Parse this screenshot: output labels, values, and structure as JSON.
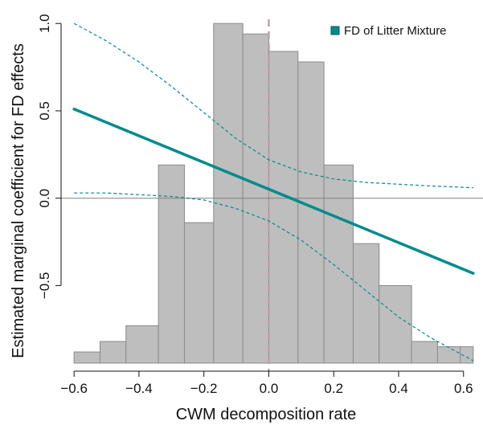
{
  "chart_data": {
    "type": "line",
    "xlabel": "CWM decomposition rate",
    "ylabel": "Estimated marginal coefficient for FD effects",
    "xlim": [
      -0.64,
      0.66
    ],
    "ylim": [
      -0.99,
      1.07
    ],
    "x_ticks": [
      -0.6,
      -0.4,
      -0.2,
      0.0,
      0.2,
      0.4,
      0.6
    ],
    "x_tick_labels": [
      "−0.6",
      "−0.4",
      "−0.2",
      "0.0",
      "0.2",
      "0.4",
      "0.6"
    ],
    "y_ticks": [
      -0.5,
      0.0,
      0.5,
      1.0
    ],
    "y_tick_labels": [
      "−0.5",
      "0.0",
      "0.5",
      "1.0"
    ],
    "reference_lines": {
      "horizontal_y": 0.0,
      "vertical_x": 0.0
    },
    "histogram": {
      "bins": [
        {
          "x0": -0.6,
          "x1": -0.52,
          "top": -0.88
        },
        {
          "x0": -0.52,
          "x1": -0.44,
          "top": -0.82
        },
        {
          "x0": -0.44,
          "x1": -0.34,
          "top": -0.73
        },
        {
          "x0": -0.34,
          "x1": -0.26,
          "top": 0.19
        },
        {
          "x0": -0.26,
          "x1": -0.17,
          "top": -0.14
        },
        {
          "x0": -0.17,
          "x1": -0.08,
          "top": 1.0
        },
        {
          "x0": -0.08,
          "x1": 0.0,
          "top": 0.94
        },
        {
          "x0": 0.0,
          "x1": 0.09,
          "top": 0.84
        },
        {
          "x0": 0.09,
          "x1": 0.17,
          "top": 0.78
        },
        {
          "x0": 0.17,
          "x1": 0.26,
          "top": 0.19
        },
        {
          "x0": 0.26,
          "x1": 0.34,
          "top": -0.26
        },
        {
          "x0": 0.34,
          "x1": 0.44,
          "top": -0.5
        },
        {
          "x0": 0.44,
          "x1": 0.52,
          "top": -0.82
        },
        {
          "x0": 0.52,
          "x1": 0.59,
          "top": -0.85
        },
        {
          "x0": 0.59,
          "x1": 0.63,
          "top": -0.85
        }
      ]
    },
    "series": [
      {
        "name": "FD of Litter Mixture",
        "x": [
          -0.6,
          0.63
        ],
        "y": [
          0.51,
          -0.43
        ],
        "ci_upper": {
          "x": [
            -0.6,
            -0.5,
            -0.4,
            -0.3,
            -0.2,
            -0.1,
            0.0,
            0.1,
            0.2,
            0.3,
            0.4,
            0.5,
            0.63
          ],
          "y": [
            1.0,
            0.9,
            0.78,
            0.64,
            0.49,
            0.34,
            0.22,
            0.15,
            0.11,
            0.09,
            0.08,
            0.07,
            0.06
          ]
        },
        "ci_lower": {
          "x": [
            -0.6,
            -0.5,
            -0.4,
            -0.3,
            -0.2,
            -0.1,
            0.0,
            0.1,
            0.2,
            0.3,
            0.4,
            0.5,
            0.63
          ],
          "y": [
            0.03,
            0.03,
            0.02,
            0.01,
            -0.01,
            -0.06,
            -0.13,
            -0.24,
            -0.38,
            -0.53,
            -0.68,
            -0.8,
            -0.93
          ]
        }
      }
    ],
    "colors": {
      "line": "#008B8B",
      "ci": "#008B8B",
      "bars": "#BEBEBE",
      "bar_edge": "#8A8A8A",
      "vline": "#C0A0A8",
      "hline": "#808080"
    },
    "legend": {
      "placement": "top-right"
    },
    "grid": false
  }
}
